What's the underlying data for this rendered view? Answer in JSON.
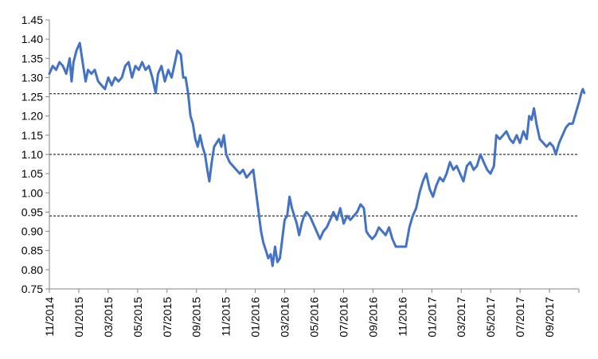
{
  "chart_data": {
    "type": "line",
    "title": "",
    "xlabel": "",
    "ylabel": "",
    "ylim": [
      0.75,
      1.45
    ],
    "grid": false,
    "legend": "none",
    "y_ticks": [
      "0.75",
      "0.80",
      "0.85",
      "0.90",
      "0.95",
      "1.00",
      "1.05",
      "1.10",
      "1.15",
      "1.20",
      "1.25",
      "1.30",
      "1.35",
      "1.40",
      "1.45"
    ],
    "x_ticks": [
      "11/2014",
      "01/2015",
      "03/2015",
      "05/2015",
      "07/2015",
      "09/2015",
      "11/2015",
      "01/2016",
      "03/2016",
      "05/2016",
      "07/2016",
      "09/2016",
      "11/2016",
      "01/2017",
      "03/2017",
      "05/2017",
      "07/2017",
      "09/2017"
    ],
    "reference_lines": [
      1.258,
      1.1,
      0.94
    ],
    "reference_line_color": "#000000",
    "series": [
      {
        "color": "#4472C4",
        "values": [
          [
            "2014-11-01",
            1.31
          ],
          [
            "2014-11-08",
            1.33
          ],
          [
            "2014-11-15",
            1.32
          ],
          [
            "2014-11-22",
            1.34
          ],
          [
            "2014-11-29",
            1.33
          ],
          [
            "2014-12-06",
            1.31
          ],
          [
            "2014-12-13",
            1.35
          ],
          [
            "2014-12-17",
            1.29
          ],
          [
            "2014-12-21",
            1.34
          ],
          [
            "2014-12-27",
            1.37
          ],
          [
            "2015-01-03",
            1.39
          ],
          [
            "2015-01-10",
            1.33
          ],
          [
            "2015-01-15",
            1.29
          ],
          [
            "2015-01-20",
            1.32
          ],
          [
            "2015-01-27",
            1.31
          ],
          [
            "2015-02-03",
            1.32
          ],
          [
            "2015-02-10",
            1.29
          ],
          [
            "2015-02-17",
            1.28
          ],
          [
            "2015-02-24",
            1.27
          ],
          [
            "2015-03-03",
            1.3
          ],
          [
            "2015-03-10",
            1.28
          ],
          [
            "2015-03-17",
            1.3
          ],
          [
            "2015-03-24",
            1.29
          ],
          [
            "2015-03-31",
            1.3
          ],
          [
            "2015-04-07",
            1.33
          ],
          [
            "2015-04-14",
            1.34
          ],
          [
            "2015-04-21",
            1.3
          ],
          [
            "2015-04-28",
            1.33
          ],
          [
            "2015-05-05",
            1.32
          ],
          [
            "2015-05-12",
            1.34
          ],
          [
            "2015-05-19",
            1.32
          ],
          [
            "2015-05-26",
            1.33
          ],
          [
            "2015-06-02",
            1.3
          ],
          [
            "2015-06-09",
            1.26
          ],
          [
            "2015-06-14",
            1.31
          ],
          [
            "2015-06-21",
            1.33
          ],
          [
            "2015-06-28",
            1.29
          ],
          [
            "2015-07-05",
            1.32
          ],
          [
            "2015-07-12",
            1.3
          ],
          [
            "2015-07-19",
            1.34
          ],
          [
            "2015-07-24",
            1.37
          ],
          [
            "2015-07-31",
            1.36
          ],
          [
            "2015-08-05",
            1.3
          ],
          [
            "2015-08-10",
            1.3
          ],
          [
            "2015-08-15",
            1.26
          ],
          [
            "2015-08-20",
            1.2
          ],
          [
            "2015-08-25",
            1.18
          ],
          [
            "2015-08-30",
            1.14
          ],
          [
            "2015-09-04",
            1.12
          ],
          [
            "2015-09-09",
            1.15
          ],
          [
            "2015-09-14",
            1.12
          ],
          [
            "2015-09-19",
            1.1
          ],
          [
            "2015-09-24",
            1.06
          ],
          [
            "2015-09-28",
            1.03
          ],
          [
            "2015-10-03",
            1.08
          ],
          [
            "2015-10-08",
            1.12
          ],
          [
            "2015-10-13",
            1.13
          ],
          [
            "2015-10-18",
            1.14
          ],
          [
            "2015-10-23",
            1.12
          ],
          [
            "2015-10-28",
            1.15
          ],
          [
            "2015-11-02",
            1.1
          ],
          [
            "2015-11-09",
            1.08
          ],
          [
            "2015-11-16",
            1.07
          ],
          [
            "2015-11-23",
            1.06
          ],
          [
            "2015-11-30",
            1.05
          ],
          [
            "2015-12-07",
            1.06
          ],
          [
            "2015-12-14",
            1.04
          ],
          [
            "2015-12-21",
            1.05
          ],
          [
            "2015-12-28",
            1.06
          ],
          [
            "2016-01-03",
            1.0
          ],
          [
            "2016-01-08",
            0.95
          ],
          [
            "2016-01-13",
            0.9
          ],
          [
            "2016-01-18",
            0.87
          ],
          [
            "2016-01-23",
            0.85
          ],
          [
            "2016-01-28",
            0.83
          ],
          [
            "2016-02-02",
            0.84
          ],
          [
            "2016-02-06",
            0.81
          ],
          [
            "2016-02-11",
            0.86
          ],
          [
            "2016-02-16",
            0.82
          ],
          [
            "2016-02-21",
            0.83
          ],
          [
            "2016-02-26",
            0.88
          ],
          [
            "2016-03-02",
            0.93
          ],
          [
            "2016-03-07",
            0.94
          ],
          [
            "2016-03-12",
            0.99
          ],
          [
            "2016-03-17",
            0.96
          ],
          [
            "2016-03-22",
            0.94
          ],
          [
            "2016-03-27",
            0.92
          ],
          [
            "2016-04-01",
            0.89
          ],
          [
            "2016-04-06",
            0.92
          ],
          [
            "2016-04-11",
            0.94
          ],
          [
            "2016-04-16",
            0.95
          ],
          [
            "2016-04-23",
            0.94
          ],
          [
            "2016-04-30",
            0.92
          ],
          [
            "2016-05-07",
            0.9
          ],
          [
            "2016-05-14",
            0.88
          ],
          [
            "2016-05-21",
            0.9
          ],
          [
            "2016-05-28",
            0.91
          ],
          [
            "2016-06-04",
            0.93
          ],
          [
            "2016-06-11",
            0.95
          ],
          [
            "2016-06-18",
            0.93
          ],
          [
            "2016-06-25",
            0.96
          ],
          [
            "2016-07-02",
            0.92
          ],
          [
            "2016-07-09",
            0.94
          ],
          [
            "2016-07-16",
            0.93
          ],
          [
            "2016-07-23",
            0.94
          ],
          [
            "2016-07-30",
            0.95
          ],
          [
            "2016-08-06",
            0.97
          ],
          [
            "2016-08-13",
            0.96
          ],
          [
            "2016-08-18",
            0.9
          ],
          [
            "2016-08-23",
            0.89
          ],
          [
            "2016-08-30",
            0.88
          ],
          [
            "2016-09-06",
            0.89
          ],
          [
            "2016-09-13",
            0.91
          ],
          [
            "2016-09-20",
            0.9
          ],
          [
            "2016-09-27",
            0.89
          ],
          [
            "2016-10-04",
            0.91
          ],
          [
            "2016-10-11",
            0.88
          ],
          [
            "2016-10-18",
            0.86
          ],
          [
            "2016-10-25",
            0.86
          ],
          [
            "2016-11-01",
            0.86
          ],
          [
            "2016-11-08",
            0.86
          ],
          [
            "2016-11-15",
            0.91
          ],
          [
            "2016-11-22",
            0.94
          ],
          [
            "2016-11-29",
            0.96
          ],
          [
            "2016-12-06",
            1.0
          ],
          [
            "2016-12-13",
            1.03
          ],
          [
            "2016-12-20",
            1.05
          ],
          [
            "2016-12-27",
            1.01
          ],
          [
            "2017-01-03",
            0.99
          ],
          [
            "2017-01-10",
            1.02
          ],
          [
            "2017-01-17",
            1.04
          ],
          [
            "2017-01-24",
            1.03
          ],
          [
            "2017-01-31",
            1.05
          ],
          [
            "2017-02-07",
            1.08
          ],
          [
            "2017-02-14",
            1.06
          ],
          [
            "2017-02-21",
            1.07
          ],
          [
            "2017-02-28",
            1.05
          ],
          [
            "2017-03-07",
            1.03
          ],
          [
            "2017-03-14",
            1.07
          ],
          [
            "2017-03-21",
            1.08
          ],
          [
            "2017-03-28",
            1.06
          ],
          [
            "2017-04-04",
            1.07
          ],
          [
            "2017-04-11",
            1.1
          ],
          [
            "2017-04-18",
            1.08
          ],
          [
            "2017-04-25",
            1.06
          ],
          [
            "2017-05-02",
            1.05
          ],
          [
            "2017-05-09",
            1.07
          ],
          [
            "2017-05-14",
            1.15
          ],
          [
            "2017-05-21",
            1.14
          ],
          [
            "2017-05-28",
            1.15
          ],
          [
            "2017-06-04",
            1.16
          ],
          [
            "2017-06-11",
            1.14
          ],
          [
            "2017-06-18",
            1.13
          ],
          [
            "2017-06-25",
            1.15
          ],
          [
            "2017-07-02",
            1.13
          ],
          [
            "2017-07-09",
            1.16
          ],
          [
            "2017-07-16",
            1.14
          ],
          [
            "2017-07-21",
            1.2
          ],
          [
            "2017-07-26",
            1.19
          ],
          [
            "2017-07-31",
            1.22
          ],
          [
            "2017-08-05",
            1.18
          ],
          [
            "2017-08-12",
            1.14
          ],
          [
            "2017-08-19",
            1.13
          ],
          [
            "2017-08-26",
            1.12
          ],
          [
            "2017-09-02",
            1.13
          ],
          [
            "2017-09-09",
            1.12
          ],
          [
            "2017-09-14",
            1.1
          ],
          [
            "2017-09-21",
            1.13
          ],
          [
            "2017-09-28",
            1.15
          ],
          [
            "2017-10-05",
            1.17
          ],
          [
            "2017-10-12",
            1.18
          ],
          [
            "2017-10-19",
            1.18
          ],
          [
            "2017-10-26",
            1.21
          ],
          [
            "2017-11-02",
            1.24
          ],
          [
            "2017-11-06",
            1.26
          ],
          [
            "2017-11-09",
            1.27
          ],
          [
            "2017-11-12",
            1.26
          ]
        ]
      }
    ]
  }
}
